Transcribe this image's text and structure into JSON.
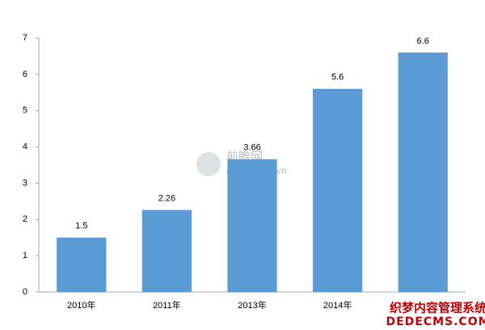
{
  "chart_data": {
    "type": "bar",
    "categories": [
      "2010年",
      "2011年",
      "2013年",
      "2014年",
      null
    ],
    "values": [
      1.5,
      2.26,
      3.66,
      5.6,
      6.6
    ],
    "color": "#5b9bd5",
    "ylim": [
      0,
      7
    ],
    "yticks": [
      0,
      1,
      2,
      3,
      4,
      5,
      6,
      7
    ],
    "grid": false
  },
  "watermarks": [
    "前瞻网",
    "qianzhan.com",
    "织梦内容管理系统",
    "DEDECMS.COM"
  ]
}
